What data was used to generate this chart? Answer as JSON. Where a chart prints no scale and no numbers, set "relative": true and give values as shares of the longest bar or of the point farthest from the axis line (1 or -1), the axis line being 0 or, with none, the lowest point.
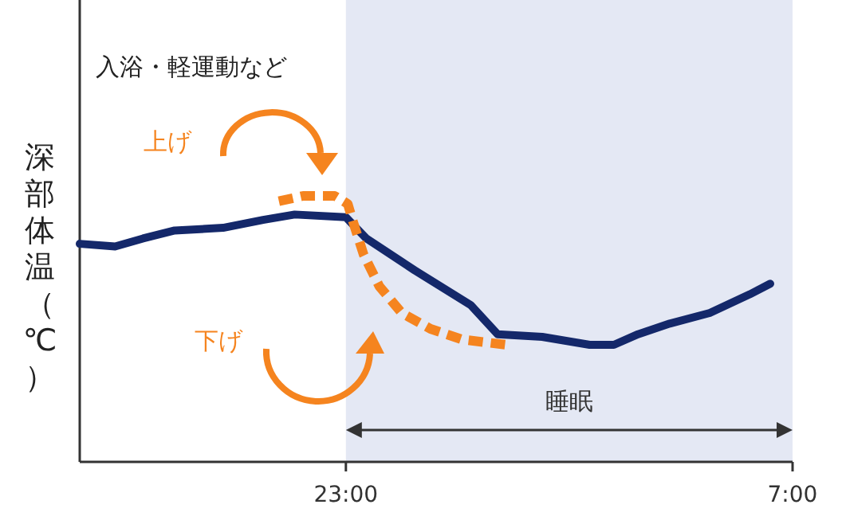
{
  "chart_data": {
    "type": "line",
    "relative": true,
    "ylabel": "深部体温（℃）",
    "annotations": [
      "入浴・軽運動など",
      "上げ",
      "下げ"
    ],
    "xlim": [
      "2000-01-01T18:14",
      "2000-01-02T07:00"
    ],
    "xticks": [
      {
        "value": "2000-01-01T23:00",
        "label": "23:00"
      },
      {
        "value": "2000-01-02T07:00",
        "label": "7:00"
      }
    ],
    "tick_labels": "x",
    "bands": [
      {
        "axis": "x",
        "from": "2000-01-01T23:00",
        "to": "2000-01-02T07:00",
        "label": "睡眠",
        "color": "#e4e8f4"
      }
    ],
    "series": [
      {
        "color": "#14286a",
        "line_style": "solid",
        "x": [
          "2000-01-01T18:14",
          "2000-01-01T18:52",
          "2000-01-01T19:22",
          "2000-01-01T19:56",
          "2000-01-01T20:48",
          "2000-01-01T21:31",
          "2000-01-01T22:05",
          "2000-01-01T23:00",
          "2000-01-01T23:22",
          "2000-01-02T00:14",
          "2000-01-02T01:14",
          "2000-01-02T01:43",
          "2000-01-02T02:31",
          "2000-01-02T03:22",
          "2000-01-02T03:48",
          "2000-01-02T04:14",
          "2000-01-02T04:48",
          "2000-01-02T05:31",
          "2000-01-02T06:14",
          "2000-01-02T06:36"
        ],
        "values": [
          0.82,
          0.81,
          0.84,
          0.87,
          0.88,
          0.91,
          0.93,
          0.92,
          0.84,
          0.72,
          0.59,
          0.48,
          0.47,
          0.44,
          0.44,
          0.48,
          0.52,
          0.56,
          0.63,
          0.67
        ]
      },
      {
        "color": "#f5841f",
        "line_style": "dashed",
        "x": [
          "2000-01-01T21:48",
          "2000-01-01T22:14",
          "2000-01-01T22:48",
          "2000-01-01T23:02",
          "2000-01-01T23:08",
          "2000-01-01T23:19",
          "2000-01-01T23:36",
          "2000-01-02T00:00",
          "2000-01-02T00:31",
          "2000-01-02T01:05",
          "2000-01-02T01:53"
        ],
        "values": [
          0.98,
          1.0,
          1.0,
          0.97,
          0.9,
          0.78,
          0.66,
          0.56,
          0.5,
          0.46,
          0.44
        ]
      }
    ]
  }
}
